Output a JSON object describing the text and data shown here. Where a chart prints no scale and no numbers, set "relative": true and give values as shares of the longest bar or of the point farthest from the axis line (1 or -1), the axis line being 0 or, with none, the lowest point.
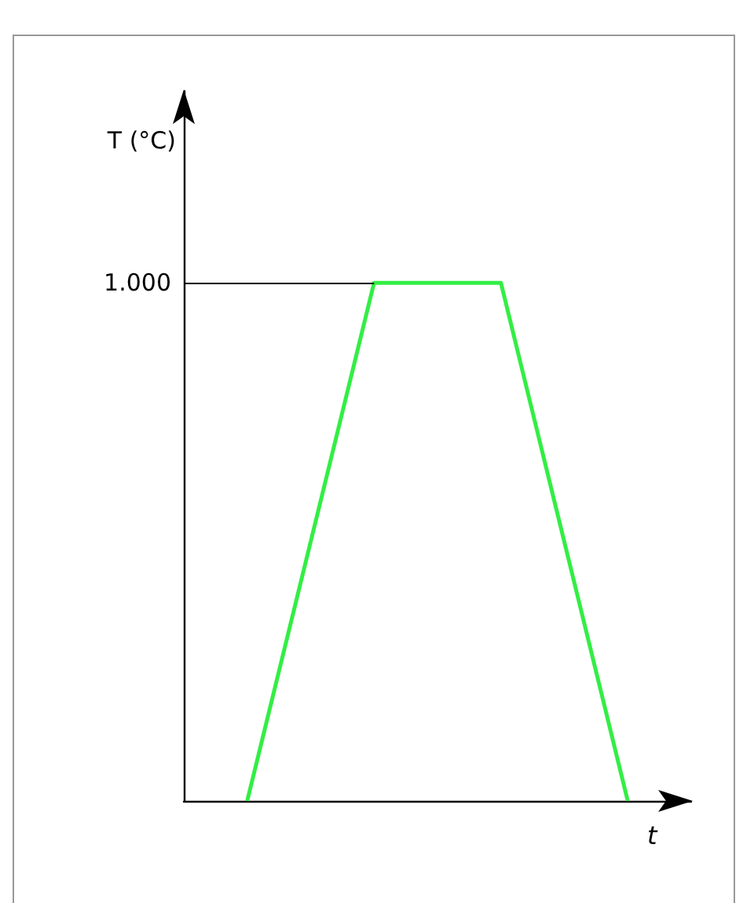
{
  "chart_data": {
    "type": "line",
    "relative": true,
    "xlabel": "t",
    "annotations": [
      "T (°C)"
    ],
    "categories": [
      null,
      null,
      null,
      null
    ],
    "series": [
      {
        "color": "#33ee44",
        "values": [
          0,
          1,
          1,
          0
        ]
      }
    ],
    "ref_lines": [
      {
        "axis": "y",
        "value": 1,
        "label": "1.000",
        "color": "#000000"
      }
    ],
    "marker": "none",
    "line_style": "solid"
  }
}
